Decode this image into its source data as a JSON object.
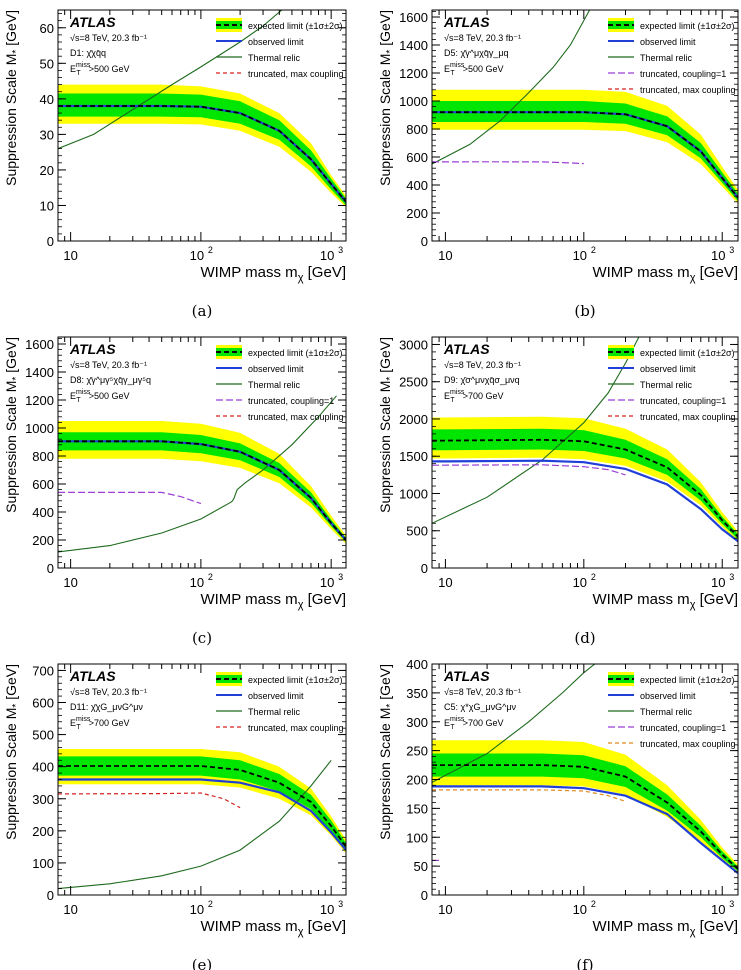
{
  "figure": {
    "experiment": "ATLAS",
    "energy_label": "√s=8 TeV, 20.3 fb⁻¹",
    "xlabel": "WIMP mass m",
    "xlabel_sub": "χ",
    "xlabel_unit": " [GeV]",
    "ylabel": "Suppression Scale M",
    "ylabel_sub": "*",
    "ylabel_unit": " [GeV]",
    "colors": {
      "band2": "#ffff00",
      "band1": "#00e600",
      "expected": "#000000",
      "observed": "#1f3fd6",
      "thermal": "#1e6b1e",
      "trunc_coupling1": "#9b3fd6",
      "trunc_max": "#d62020",
      "trunc_max_orange": "#e08a1a"
    },
    "legend_labels": {
      "expected": "expected limit (±1σ±2σ)",
      "observed": "observed limit",
      "thermal": "Thermal relic",
      "trunc_coupling1": "truncated, coupling=1",
      "trunc_max": "truncated, max coupling"
    }
  },
  "chart_data": [
    {
      "id": "a",
      "caption": "(a)",
      "type": "line",
      "operator": "D1: χ̄χq̄q",
      "met_cut": "E_T^miss>500 GeV",
      "met_label": "E",
      "met_sup": "miss",
      "met_sub": "T",
      "met_value": ">500 GeV",
      "xscale": "log",
      "xlim": [
        8,
        1300
      ],
      "ylim": [
        0,
        65
      ],
      "yticks": [
        0,
        10,
        20,
        30,
        40,
        50,
        60
      ],
      "legend": [
        "expected",
        "observed",
        "thermal",
        "trunc_max"
      ],
      "x": [
        8,
        10,
        50,
        100,
        200,
        400,
        700,
        1000,
        1300
      ],
      "expected": [
        38,
        38,
        38,
        37.8,
        36,
        31,
        23,
        16,
        11
      ],
      "observed": [
        38,
        38,
        38,
        37.8,
        36,
        31,
        23,
        16,
        11
      ],
      "band1": [
        [
          35,
          41.5
        ],
        [
          35,
          41.5
        ],
        [
          35,
          41.5
        ],
        [
          34.8,
          41.2
        ],
        [
          33,
          39.3
        ],
        [
          28.5,
          34
        ],
        [
          21,
          25.5
        ],
        [
          14.5,
          17.5
        ],
        [
          10,
          12
        ]
      ],
      "band2": [
        [
          33,
          44
        ],
        [
          33,
          44
        ],
        [
          33,
          44
        ],
        [
          32.8,
          43.5
        ],
        [
          31,
          41.5
        ],
        [
          26.5,
          36
        ],
        [
          19.5,
          27.5
        ],
        [
          13.5,
          18.5
        ],
        [
          9.5,
          12.7
        ]
      ],
      "thermal": [
        [
          8,
          26
        ],
        [
          15,
          30
        ],
        [
          30,
          37
        ],
        [
          60,
          44
        ],
        [
          100,
          49
        ],
        [
          200,
          56
        ],
        [
          300,
          60.5
        ],
        [
          450,
          66
        ]
      ],
      "trunc_coupling1": [],
      "trunc_max": []
    },
    {
      "id": "b",
      "caption": "(b)",
      "type": "line",
      "operator": "D5: χ̄γ^μχq̄γ_μq",
      "met_label": "E",
      "met_sup": "miss",
      "met_sub": "T",
      "met_value": ">500 GeV",
      "xscale": "log",
      "xlim": [
        8,
        1300
      ],
      "ylim": [
        0,
        1650
      ],
      "yticks": [
        0,
        200,
        400,
        600,
        800,
        1000,
        1200,
        1400,
        1600
      ],
      "legend": [
        "expected",
        "observed",
        "thermal",
        "trunc_coupling1",
        "trunc_max"
      ],
      "x": [
        8,
        10,
        50,
        100,
        200,
        400,
        700,
        1000,
        1300
      ],
      "expected": [
        920,
        920,
        920,
        920,
        905,
        820,
        640,
        450,
        310
      ],
      "observed": [
        920,
        920,
        920,
        920,
        905,
        820,
        640,
        450,
        310
      ],
      "band1": [
        [
          850,
          1000
        ],
        [
          850,
          1000
        ],
        [
          850,
          1000
        ],
        [
          850,
          1000
        ],
        [
          838,
          982
        ],
        [
          755,
          890
        ],
        [
          590,
          700
        ],
        [
          415,
          490
        ],
        [
          285,
          340
        ]
      ],
      "band2": [
        [
          795,
          1080
        ],
        [
          795,
          1080
        ],
        [
          795,
          1080
        ],
        [
          795,
          1080
        ],
        [
          785,
          1065
        ],
        [
          705,
          965
        ],
        [
          550,
          760
        ],
        [
          388,
          530
        ],
        [
          268,
          365
        ]
      ],
      "thermal": [
        [
          8,
          550
        ],
        [
          15,
          690
        ],
        [
          25,
          860
        ],
        [
          40,
          1060
        ],
        [
          60,
          1240
        ],
        [
          80,
          1400
        ],
        [
          110,
          1650
        ]
      ],
      "trunc_coupling1": [
        [
          8,
          565
        ],
        [
          20,
          566
        ],
        [
          50,
          565
        ],
        [
          80,
          558
        ],
        [
          100,
          553
        ]
      ],
      "trunc_max": []
    },
    {
      "id": "c",
      "caption": "(c)",
      "type": "line",
      "operator": "D8: χ̄γ^μγ⁵χq̄γ_μγ⁵q",
      "met_label": "E",
      "met_sup": "miss",
      "met_sub": "T",
      "met_value": ">500 GeV",
      "xscale": "log",
      "xlim": [
        8,
        1300
      ],
      "ylim": [
        0,
        1650
      ],
      "yticks": [
        0,
        200,
        400,
        600,
        800,
        1000,
        1200,
        1400,
        1600
      ],
      "legend": [
        "expected",
        "observed",
        "thermal",
        "trunc_coupling1",
        "trunc_max"
      ],
      "x": [
        8,
        10,
        50,
        100,
        200,
        400,
        700,
        1000,
        1300
      ],
      "expected": [
        905,
        905,
        905,
        885,
        830,
        700,
        500,
        320,
        200
      ],
      "observed": [
        905,
        905,
        905,
        885,
        830,
        700,
        500,
        320,
        200
      ],
      "band1": [
        [
          840,
          970
        ],
        [
          840,
          970
        ],
        [
          840,
          970
        ],
        [
          820,
          950
        ],
        [
          770,
          890
        ],
        [
          650,
          750
        ],
        [
          465,
          540
        ],
        [
          298,
          345
        ],
        [
          185,
          215
        ]
      ],
      "band2": [
        [
          780,
          1050
        ],
        [
          780,
          1050
        ],
        [
          780,
          1050
        ],
        [
          762,
          1030
        ],
        [
          715,
          965
        ],
        [
          605,
          815
        ],
        [
          432,
          585
        ],
        [
          278,
          372
        ],
        [
          172,
          232
        ]
      ],
      "thermal": [
        [
          8,
          115
        ],
        [
          20,
          160
        ],
        [
          50,
          250
        ],
        [
          100,
          350
        ],
        [
          170,
          470
        ],
        [
          175,
          480
        ],
        [
          180,
          500
        ],
        [
          190,
          560
        ],
        [
          220,
          610
        ],
        [
          300,
          700
        ],
        [
          500,
          880
        ],
        [
          800,
          1080
        ],
        [
          1100,
          1230
        ]
      ],
      "trunc_coupling1": [
        [
          8,
          540
        ],
        [
          20,
          540
        ],
        [
          50,
          540
        ],
        [
          70,
          510
        ],
        [
          100,
          460
        ]
      ],
      "trunc_max": []
    },
    {
      "id": "d",
      "caption": "(d)",
      "type": "line",
      "operator": "D9: χ̄σ^μνχq̄σ_μνq",
      "met_label": "E",
      "met_sup": "miss",
      "met_sub": "T",
      "met_value": ">700 GeV",
      "xscale": "log",
      "xlim": [
        8,
        1300
      ],
      "ylim": [
        0,
        3100
      ],
      "yticks": [
        0,
        500,
        1000,
        1500,
        2000,
        2500,
        3000
      ],
      "legend": [
        "expected",
        "observed",
        "thermal",
        "trunc_coupling1",
        "trunc_max"
      ],
      "x": [
        8,
        10,
        50,
        100,
        200,
        400,
        700,
        1000,
        1300
      ],
      "expected": [
        1710,
        1710,
        1720,
        1700,
        1590,
        1350,
        980,
        640,
        420
      ],
      "observed": [
        1430,
        1430,
        1440,
        1420,
        1330,
        1120,
        790,
        520,
        360
      ],
      "band1": [
        [
          1580,
          1860
        ],
        [
          1580,
          1860
        ],
        [
          1590,
          1870
        ],
        [
          1570,
          1850
        ],
        [
          1470,
          1720
        ],
        [
          1250,
          1460
        ],
        [
          905,
          1060
        ],
        [
          590,
          690
        ],
        [
          385,
          455
        ]
      ],
      "band2": [
        [
          1470,
          2020
        ],
        [
          1470,
          2020
        ],
        [
          1480,
          2030
        ],
        [
          1460,
          2010
        ],
        [
          1370,
          1870
        ],
        [
          1160,
          1590
        ],
        [
          840,
          1150
        ],
        [
          550,
          750
        ],
        [
          360,
          490
        ]
      ],
      "thermal": [
        [
          8,
          600
        ],
        [
          20,
          950
        ],
        [
          50,
          1450
        ],
        [
          100,
          1950
        ],
        [
          150,
          2350
        ],
        [
          200,
          2750
        ],
        [
          250,
          3100
        ]
      ],
      "trunc_coupling1": [
        [
          8,
          1380
        ],
        [
          50,
          1385
        ],
        [
          100,
          1360
        ],
        [
          150,
          1320
        ],
        [
          200,
          1250
        ]
      ],
      "trunc_max": []
    },
    {
      "id": "e",
      "caption": "(e)",
      "type": "line",
      "operator": "D11: χ̄χG_μνG^μν",
      "met_label": "E",
      "met_sup": "miss",
      "met_sub": "T",
      "met_value": ">700 GeV",
      "xscale": "log",
      "xlim": [
        8,
        1300
      ],
      "ylim": [
        0,
        720
      ],
      "yticks": [
        0,
        100,
        200,
        300,
        400,
        500,
        600,
        700
      ],
      "legend": [
        "expected",
        "observed",
        "thermal",
        "trunc_max"
      ],
      "x": [
        8,
        10,
        50,
        100,
        200,
        400,
        700,
        1000,
        1300
      ],
      "expected": [
        402,
        402,
        402,
        402,
        390,
        350,
        290,
        215,
        150
      ],
      "observed": [
        360,
        360,
        360,
        360,
        350,
        320,
        262,
        195,
        140
      ],
      "band1": [
        [
          372,
          432
        ],
        [
          372,
          432
        ],
        [
          372,
          432
        ],
        [
          372,
          432
        ],
        [
          360,
          420
        ],
        [
          323,
          377
        ],
        [
          268,
          312
        ],
        [
          198,
          232
        ],
        [
          138,
          162
        ]
      ],
      "band2": [
        [
          345,
          455
        ],
        [
          345,
          455
        ],
        [
          345,
          455
        ],
        [
          345,
          455
        ],
        [
          335,
          445
        ],
        [
          300,
          400
        ],
        [
          248,
          332
        ],
        [
          185,
          245
        ],
        [
          130,
          172
        ]
      ],
      "thermal": [
        [
          8,
          20
        ],
        [
          20,
          35
        ],
        [
          50,
          60
        ],
        [
          100,
          90
        ],
        [
          200,
          140
        ],
        [
          400,
          230
        ],
        [
          700,
          340
        ],
        [
          1000,
          420
        ]
      ],
      "trunc_coupling1": [],
      "trunc_max": [
        [
          8,
          315
        ],
        [
          50,
          316
        ],
        [
          100,
          318
        ],
        [
          150,
          300
        ],
        [
          200,
          272
        ]
      ]
    },
    {
      "id": "f",
      "caption": "(f)",
      "type": "line",
      "operator": "C5: χ*χG_μνG^μν",
      "met_label": "E",
      "met_sup": "miss",
      "met_sub": "T",
      "met_value": ">700 GeV",
      "xscale": "log",
      "xlim": [
        8,
        1300
      ],
      "ylim": [
        0,
        400
      ],
      "yticks": [
        0,
        50,
        100,
        150,
        200,
        250,
        300,
        350,
        400
      ],
      "legend": [
        "expected",
        "observed",
        "thermal",
        "trunc_coupling1",
        "trunc_max"
      ],
      "x": [
        8,
        10,
        50,
        100,
        200,
        400,
        700,
        1000,
        1300
      ],
      "expected": [
        225,
        225,
        225,
        222,
        205,
        160,
        110,
        70,
        45
      ],
      "observed": [
        188,
        188,
        188,
        185,
        172,
        140,
        90,
        60,
        38
      ],
      "band1": [
        [
          205,
          245
        ],
        [
          205,
          245
        ],
        [
          205,
          245
        ],
        [
          202,
          242
        ],
        [
          187,
          223
        ],
        [
          146,
          174
        ],
        [
          100,
          120
        ],
        [
          64,
          76
        ],
        [
          41,
          49
        ]
      ],
      "band2": [
        [
          190,
          268
        ],
        [
          190,
          268
        ],
        [
          190,
          268
        ],
        [
          188,
          265
        ],
        [
          174,
          243
        ],
        [
          135,
          190
        ],
        [
          93,
          130
        ],
        [
          60,
          82
        ],
        [
          38,
          53
        ]
      ],
      "thermal": [
        [
          8,
          195
        ],
        [
          20,
          245
        ],
        [
          40,
          300
        ],
        [
          70,
          350
        ],
        [
          100,
          385
        ],
        [
          120,
          400
        ]
      ],
      "trunc_coupling1": [
        [
          8,
          60
        ],
        [
          9,
          60
        ]
      ],
      "trunc_max": [
        [
          8,
          182
        ],
        [
          50,
          182
        ],
        [
          100,
          180
        ],
        [
          150,
          172
        ],
        [
          200,
          162
        ]
      ]
    }
  ]
}
